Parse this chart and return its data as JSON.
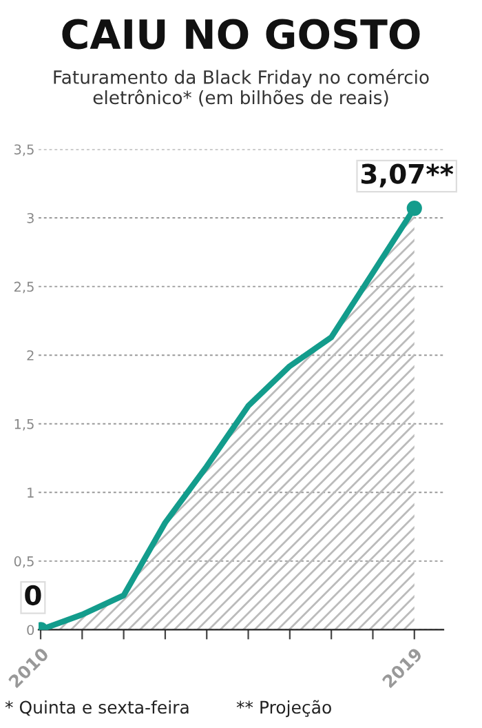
{
  "chart_data": {
    "type": "area",
    "title": "CAIU NO GOSTO",
    "subtitle": "Faturamento da Black Friday no comércio eletrônico* (em bilhões de reais)",
    "x": [
      2010,
      2011,
      2012,
      2013,
      2014,
      2015,
      2016,
      2017,
      2018,
      2019
    ],
    "series": [
      {
        "color": "#139c8c",
        "values": [
          0,
          0.11,
          0.25,
          0.78,
          1.19,
          1.63,
          1.92,
          2.13,
          2.6,
          3.07
        ],
        "value_labels": [
          "0",
          null,
          null,
          null,
          null,
          null,
          null,
          null,
          null,
          "3,07**"
        ]
      }
    ],
    "xlim": [
      2009.95,
      2019.7
    ],
    "xticks": [
      {
        "value": 2010,
        "label": "2010"
      },
      {
        "value": 2011,
        "label": null
      },
      {
        "value": 2012,
        "label": null
      },
      {
        "value": 2013,
        "label": null
      },
      {
        "value": 2014,
        "label": null
      },
      {
        "value": 2015,
        "label": null
      },
      {
        "value": 2016,
        "label": null
      },
      {
        "value": 2017,
        "label": null
      },
      {
        "value": 2018,
        "label": null
      },
      {
        "value": 2019,
        "label": "2019"
      }
    ],
    "ylim": [
      0,
      3.5
    ],
    "yticks": [
      0,
      {
        "value": 0.5,
        "label": "0,5"
      },
      1,
      {
        "value": 1.5,
        "label": "1,5"
      },
      2,
      {
        "value": 2.5,
        "label": "2,5"
      },
      3,
      {
        "value": 3.5,
        "label": "3,5"
      }
    ],
    "grid": "y",
    "line_style": "solid",
    "annotations": [
      "* Quinta e sexta-feira",
      "** Projeção"
    ]
  }
}
